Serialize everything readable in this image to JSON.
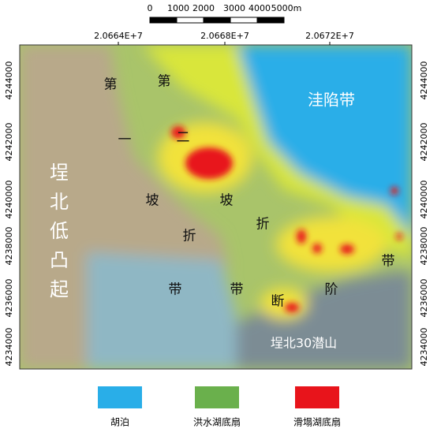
{
  "scale_bar": {
    "labels": [
      "0",
      "1000",
      "2000",
      "3000",
      "4000",
      "5000m"
    ]
  },
  "x_ticks": [
    "2.0664E+7",
    "2.0668E+7",
    "2.0672E+7"
  ],
  "y_ticks": [
    "4244000",
    "4242000",
    "4240000",
    "4238000",
    "4236000",
    "4234000"
  ],
  "region_labels": [
    "第",
    "第",
    "二",
    "一",
    "坡",
    "坡",
    "折",
    "折",
    "带",
    "带",
    "断",
    "阶",
    "带",
    "洼陷带",
    "埕北低凸起",
    "埕北30潜山"
  ],
  "legend": [
    {
      "label": "胡泊",
      "color": "#29aee8"
    },
    {
      "label": "洪水湖底扇",
      "color": "#6ab04c"
    },
    {
      "label": "滑塌湖底扇",
      "color": "#e8141b"
    }
  ]
}
